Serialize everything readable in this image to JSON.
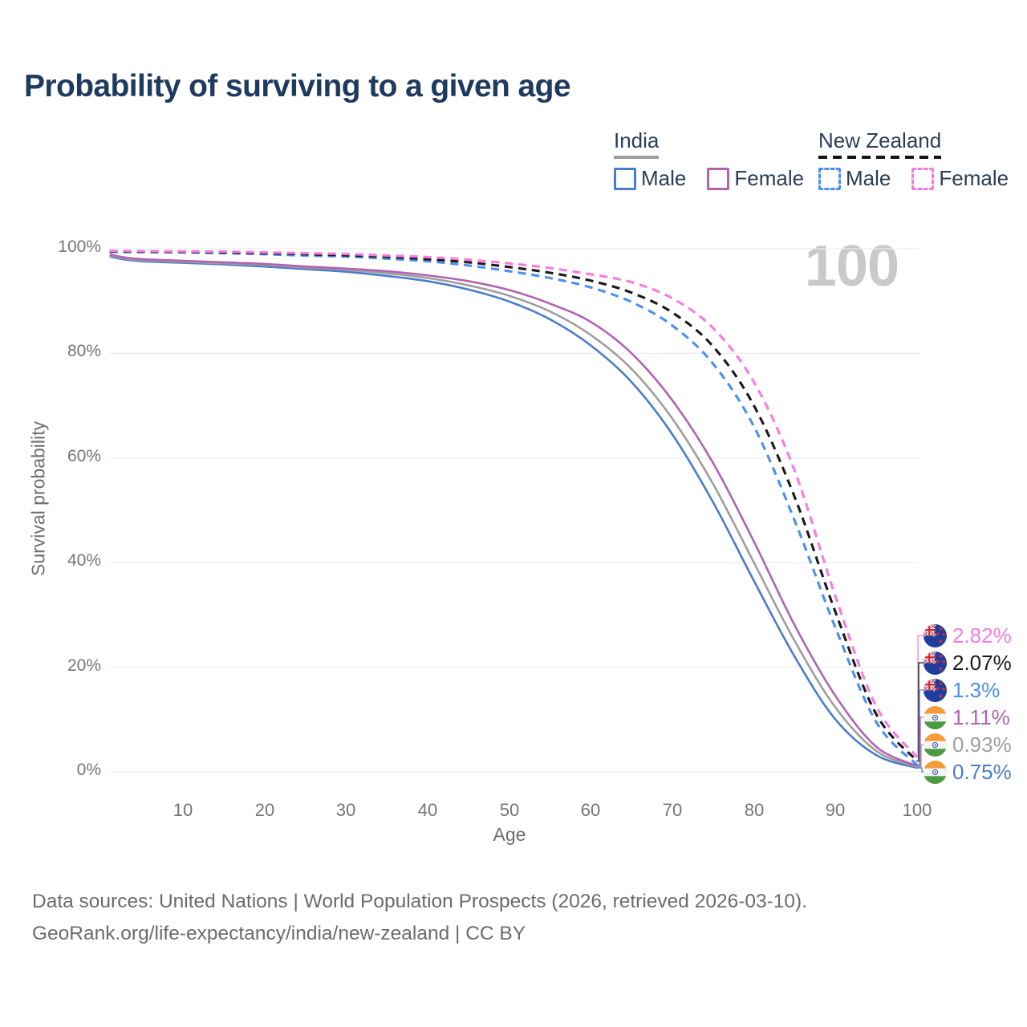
{
  "title": "Probability of surviving to a given age",
  "watermark_age": "100",
  "legend": {
    "groups": [
      {
        "label": "India",
        "line_style": "solid",
        "underline_color": "#9e9e9e",
        "items": [
          {
            "label": "Male",
            "color": "#4a7dc9"
          },
          {
            "label": "Female",
            "color": "#b163b1"
          }
        ]
      },
      {
        "label": "New Zealand",
        "line_style": "dashed",
        "underline_color": "#141414",
        "items": [
          {
            "label": "Male",
            "color": "#4b8ff2"
          },
          {
            "label": "Female",
            "color": "#fb79de"
          }
        ]
      }
    ]
  },
  "chart_data": {
    "type": "line",
    "title": "Probability of surviving to a given age",
    "xlabel": "Age",
    "ylabel": "Survival probability",
    "xlim": [
      1,
      100
    ],
    "ylim": [
      0,
      100
    ],
    "grid": "horizontal",
    "x_tick_labels": [
      "10",
      "20",
      "30",
      "40",
      "50",
      "60",
      "70",
      "80",
      "90",
      "100"
    ],
    "y_tick_labels": [
      "100%",
      "80%",
      "60%",
      "40%",
      "20%",
      "0%"
    ],
    "y_tick_values": [
      100,
      80,
      60,
      40,
      20,
      0
    ],
    "series": [
      {
        "name": "India Male",
        "color": "#4a7dc9",
        "dash": false,
        "points": [
          [
            1,
            98.5
          ],
          [
            3,
            97.9
          ],
          [
            5,
            97.6
          ],
          [
            10,
            97.3
          ],
          [
            15,
            97.0
          ],
          [
            20,
            96.6
          ],
          [
            25,
            96.1
          ],
          [
            30,
            95.6
          ],
          [
            35,
            94.8
          ],
          [
            40,
            93.8
          ],
          [
            45,
            92.2
          ],
          [
            50,
            89.9
          ],
          [
            55,
            86.5
          ],
          [
            60,
            81.5
          ],
          [
            65,
            74.5
          ],
          [
            70,
            64.5
          ],
          [
            75,
            51.5
          ],
          [
            80,
            36.5
          ],
          [
            85,
            22.0
          ],
          [
            90,
            10.0
          ],
          [
            95,
            3.2
          ],
          [
            100,
            0.75
          ]
        ]
      },
      {
        "name": "India",
        "color": "#9e9e9e",
        "dash": false,
        "points": [
          [
            1,
            98.7
          ],
          [
            3,
            98.1
          ],
          [
            5,
            97.8
          ],
          [
            10,
            97.5
          ],
          [
            15,
            97.2
          ],
          [
            20,
            96.9
          ],
          [
            25,
            96.4
          ],
          [
            30,
            96.0
          ],
          [
            35,
            95.3
          ],
          [
            40,
            94.4
          ],
          [
            45,
            93.0
          ],
          [
            50,
            91.0
          ],
          [
            55,
            88.0
          ],
          [
            60,
            83.5
          ],
          [
            65,
            77.0
          ],
          [
            70,
            67.5
          ],
          [
            75,
            55.0
          ],
          [
            80,
            40.0
          ],
          [
            85,
            25.0
          ],
          [
            90,
            12.3
          ],
          [
            95,
            4.0
          ],
          [
            100,
            0.93
          ]
        ]
      },
      {
        "name": "India Female",
        "color": "#b163b1",
        "dash": false,
        "points": [
          [
            1,
            98.9
          ],
          [
            3,
            98.3
          ],
          [
            5,
            98.0
          ],
          [
            10,
            97.7
          ],
          [
            15,
            97.4
          ],
          [
            20,
            97.1
          ],
          [
            25,
            96.6
          ],
          [
            30,
            96.2
          ],
          [
            35,
            95.7
          ],
          [
            40,
            94.9
          ],
          [
            45,
            93.8
          ],
          [
            50,
            92.1
          ],
          [
            55,
            89.5
          ],
          [
            60,
            86.0
          ],
          [
            65,
            80.0
          ],
          [
            70,
            71.0
          ],
          [
            75,
            59.0
          ],
          [
            80,
            44.0
          ],
          [
            85,
            28.0
          ],
          [
            90,
            14.5
          ],
          [
            95,
            4.8
          ],
          [
            100,
            1.11
          ]
        ]
      },
      {
        "name": "New Zealand Male",
        "color": "#4b8ff2",
        "dash": true,
        "points": [
          [
            1,
            99.4
          ],
          [
            5,
            99.35
          ],
          [
            10,
            99.3
          ],
          [
            15,
            99.15
          ],
          [
            20,
            98.95
          ],
          [
            25,
            98.7
          ],
          [
            30,
            98.5
          ],
          [
            35,
            98.1
          ],
          [
            40,
            97.6
          ],
          [
            45,
            96.8
          ],
          [
            50,
            95.7
          ],
          [
            55,
            94.4
          ],
          [
            60,
            92.6
          ],
          [
            65,
            89.8
          ],
          [
            70,
            85.3
          ],
          [
            75,
            78.0
          ],
          [
            80,
            66.0
          ],
          [
            85,
            48.0
          ],
          [
            90,
            27.5
          ],
          [
            95,
            9.5
          ],
          [
            100,
            1.3
          ]
        ]
      },
      {
        "name": "New Zealand",
        "color": "#1a1a1a",
        "dash": true,
        "points": [
          [
            1,
            99.5
          ],
          [
            5,
            99.45
          ],
          [
            10,
            99.4
          ],
          [
            15,
            99.3
          ],
          [
            20,
            99.15
          ],
          [
            25,
            98.95
          ],
          [
            30,
            98.75
          ],
          [
            35,
            98.45
          ],
          [
            40,
            98.0
          ],
          [
            45,
            97.4
          ],
          [
            50,
            96.5
          ],
          [
            55,
            95.4
          ],
          [
            60,
            93.9
          ],
          [
            65,
            91.6
          ],
          [
            70,
            87.8
          ],
          [
            75,
            81.3
          ],
          [
            80,
            70.0
          ],
          [
            85,
            52.5
          ],
          [
            90,
            30.5
          ],
          [
            95,
            11.0
          ],
          [
            100,
            2.07
          ]
        ]
      },
      {
        "name": "New Zealand Female",
        "color": "#fb79de",
        "dash": true,
        "points": [
          [
            1,
            99.6
          ],
          [
            5,
            99.55
          ],
          [
            10,
            99.5
          ],
          [
            15,
            99.45
          ],
          [
            20,
            99.3
          ],
          [
            25,
            99.15
          ],
          [
            30,
            99.0
          ],
          [
            35,
            98.7
          ],
          [
            40,
            98.4
          ],
          [
            45,
            97.9
          ],
          [
            50,
            97.2
          ],
          [
            55,
            96.3
          ],
          [
            60,
            95.1
          ],
          [
            65,
            93.6
          ],
          [
            70,
            90.5
          ],
          [
            75,
            84.8
          ],
          [
            80,
            74.5
          ],
          [
            85,
            57.5
          ],
          [
            90,
            33.5
          ],
          [
            95,
            12.5
          ],
          [
            100,
            2.82
          ]
        ]
      }
    ],
    "end_labels": [
      {
        "label": "2.82%",
        "value": 2.82,
        "flag": "new-zealand",
        "color": "#fb79de"
      },
      {
        "label": "2.07%",
        "value": 2.07,
        "flag": "new-zealand",
        "color": "#1a1a1a"
      },
      {
        "label": "1.3%",
        "value": 1.3,
        "flag": "new-zealand",
        "color": "#4b8ff2"
      },
      {
        "label": "1.11%",
        "value": 1.11,
        "flag": "india",
        "color": "#b163b1"
      },
      {
        "label": "0.93%",
        "value": 0.93,
        "flag": "india",
        "color": "#9e9e9e"
      },
      {
        "label": "0.75%",
        "value": 0.75,
        "flag": "india",
        "color": "#4a7dc9"
      }
    ]
  },
  "footer": {
    "line1": "Data sources: United Nations | World Population Prospects (2026, retrieved 2026-03-10).",
    "line2": "GeoRank.org/life-expectancy/india/new-zealand | CC BY"
  }
}
